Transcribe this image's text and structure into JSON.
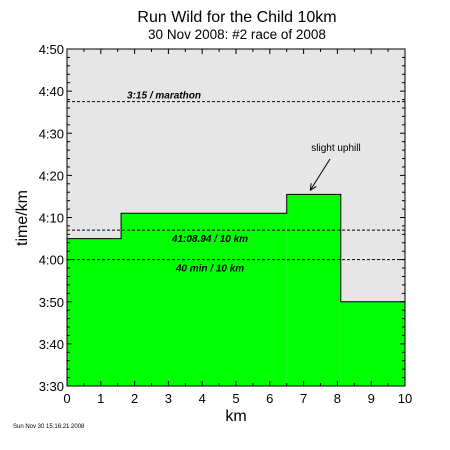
{
  "chart_data": {
    "type": "area",
    "title": "Run Wild for the Child 10km",
    "subtitle": "30 Nov 2008: #2 race of 2008",
    "xlabel": "km",
    "ylabel": "time/km",
    "xlim": [
      0,
      10
    ],
    "ylim_seconds": [
      210,
      290
    ],
    "x_ticks": [
      "0",
      "1",
      "2",
      "3",
      "4",
      "5",
      "6",
      "7",
      "8",
      "9",
      "10"
    ],
    "y_ticks": [
      "3:30",
      "3:40",
      "3:50",
      "4:00",
      "4:10",
      "4:20",
      "4:30",
      "4:40",
      "4:50"
    ],
    "series": [
      {
        "color": "#00ff00",
        "segments": [
          {
            "x_start": 0,
            "x_end": 1.6,
            "pace": "4:05"
          },
          {
            "x_start": 1.6,
            "x_end": 6.5,
            "pace": "4:11"
          },
          {
            "x_start": 6.5,
            "x_end": 8.1,
            "pace": "4:15.5"
          },
          {
            "x_start": 8.1,
            "x_end": 10,
            "pace": "3:50"
          }
        ]
      }
    ],
    "reference_lines": [
      {
        "label": "3:15 / marathon",
        "pace": "4:37.5"
      },
      {
        "label": "41:08.94 / 10 km",
        "pace": "4:07"
      },
      {
        "label": "40 min / 10 km",
        "pace": "4:00"
      }
    ],
    "annotations": [
      {
        "text": "slight uphill",
        "arrow_to_km": 7.2,
        "arrow_to_pace": "4:16.5"
      }
    ],
    "plot_background": "#e6e6e6",
    "fill_color": "#00ff00"
  },
  "footer": {
    "timestamp": "Sun Nov 30 15:16:21 2008"
  }
}
